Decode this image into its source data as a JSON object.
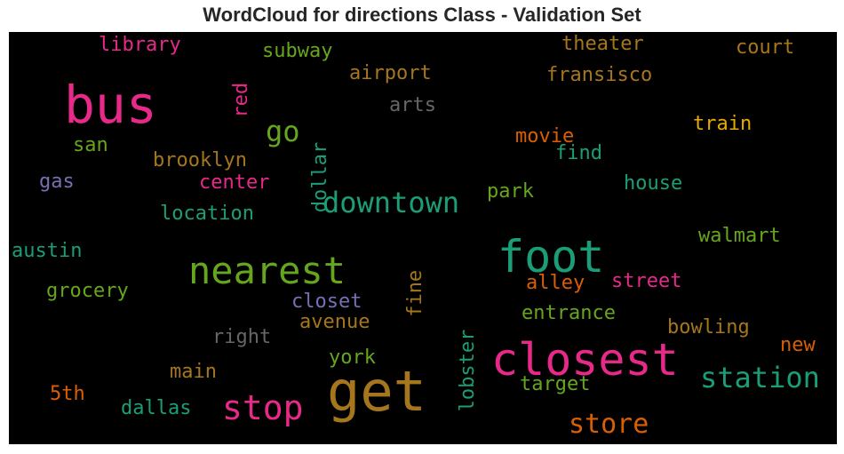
{
  "title": "WordCloud for directions Class - Validation Set",
  "chart_data": {
    "type": "wordcloud",
    "title": "WordCloud for directions Class - Validation Set",
    "background": "#000000",
    "words": [
      {
        "text": "get",
        "weight": 1.0,
        "color": "#a6761d",
        "rotate": 0
      },
      {
        "text": "closest",
        "weight": 0.85,
        "color": "#e7298a",
        "rotate": 0
      },
      {
        "text": "bus",
        "weight": 0.8,
        "color": "#e7298a",
        "rotate": 0
      },
      {
        "text": "foot",
        "weight": 0.75,
        "color": "#1b9e77",
        "rotate": 0
      },
      {
        "text": "nearest",
        "weight": 0.68,
        "color": "#66a61e",
        "rotate": 0
      },
      {
        "text": "stop",
        "weight": 0.6,
        "color": "#e7298a",
        "rotate": 0
      },
      {
        "text": "station",
        "weight": 0.5,
        "color": "#1b9e77",
        "rotate": 0
      },
      {
        "text": "downtown",
        "weight": 0.48,
        "color": "#1b9e77",
        "rotate": 0
      },
      {
        "text": "store",
        "weight": 0.46,
        "color": "#d95f02",
        "rotate": 0
      },
      {
        "text": "go",
        "weight": 0.45,
        "color": "#66a61e",
        "rotate": 0
      },
      {
        "text": "lobster",
        "weight": 0.36,
        "color": "#1b9e77",
        "rotate": -90
      },
      {
        "text": "dollar",
        "weight": 0.36,
        "color": "#1b9e77",
        "rotate": -90
      },
      {
        "text": "fine",
        "weight": 0.35,
        "color": "#a6761d",
        "rotate": -90
      },
      {
        "text": "red",
        "weight": 0.33,
        "color": "#e7298a",
        "rotate": -90
      },
      {
        "text": "library",
        "weight": 0.35,
        "color": "#e7298a",
        "rotate": 0
      },
      {
        "text": "subway",
        "weight": 0.35,
        "color": "#66a61e",
        "rotate": 0
      },
      {
        "text": "theater",
        "weight": 0.34,
        "color": "#a6761d",
        "rotate": 0
      },
      {
        "text": "court",
        "weight": 0.34,
        "color": "#a6761d",
        "rotate": 0
      },
      {
        "text": "airport",
        "weight": 0.35,
        "color": "#a6761d",
        "rotate": 0
      },
      {
        "text": "fransisco",
        "weight": 0.35,
        "color": "#a6761d",
        "rotate": 0
      },
      {
        "text": "arts",
        "weight": 0.34,
        "color": "#666666",
        "rotate": 0
      },
      {
        "text": "train",
        "weight": 0.35,
        "color": "#e6ab02",
        "rotate": 0
      },
      {
        "text": "san",
        "weight": 0.33,
        "color": "#66a61e",
        "rotate": 0
      },
      {
        "text": "movie",
        "weight": 0.34,
        "color": "#d95f02",
        "rotate": 0
      },
      {
        "text": "find",
        "weight": 0.33,
        "color": "#1b9e77",
        "rotate": 0
      },
      {
        "text": "brooklyn",
        "weight": 0.35,
        "color": "#a6761d",
        "rotate": 0
      },
      {
        "text": "gas",
        "weight": 0.33,
        "color": "#7570b3",
        "rotate": 0
      },
      {
        "text": "center",
        "weight": 0.34,
        "color": "#e7298a",
        "rotate": 0
      },
      {
        "text": "house",
        "weight": 0.33,
        "color": "#1b9e77",
        "rotate": 0
      },
      {
        "text": "park",
        "weight": 0.33,
        "color": "#66a61e",
        "rotate": 0
      },
      {
        "text": "location",
        "weight": 0.34,
        "color": "#1b9e77",
        "rotate": 0
      },
      {
        "text": "walmart",
        "weight": 0.34,
        "color": "#66a61e",
        "rotate": 0
      },
      {
        "text": "austin",
        "weight": 0.34,
        "color": "#1b9e77",
        "rotate": 0
      },
      {
        "text": "alley",
        "weight": 0.34,
        "color": "#d95f02",
        "rotate": 0
      },
      {
        "text": "street",
        "weight": 0.34,
        "color": "#e7298a",
        "rotate": 0
      },
      {
        "text": "grocery",
        "weight": 0.34,
        "color": "#66a61e",
        "rotate": 0
      },
      {
        "text": "closet",
        "weight": 0.33,
        "color": "#7570b3",
        "rotate": 0
      },
      {
        "text": "entrance",
        "weight": 0.34,
        "color": "#66a61e",
        "rotate": 0
      },
      {
        "text": "avenue",
        "weight": 0.33,
        "color": "#a6761d",
        "rotate": 0
      },
      {
        "text": "bowling",
        "weight": 0.34,
        "color": "#a6761d",
        "rotate": 0
      },
      {
        "text": "right",
        "weight": 0.33,
        "color": "#666666",
        "rotate": 0
      },
      {
        "text": "new",
        "weight": 0.33,
        "color": "#d95f02",
        "rotate": 0
      },
      {
        "text": "york",
        "weight": 0.33,
        "color": "#66a61e",
        "rotate": 0
      },
      {
        "text": "main",
        "weight": 0.33,
        "color": "#a6761d",
        "rotate": 0
      },
      {
        "text": "target",
        "weight": 0.33,
        "color": "#66a61e",
        "rotate": 0
      },
      {
        "text": "5th",
        "weight": 0.33,
        "color": "#d95f02",
        "rotate": 0
      },
      {
        "text": "dallas",
        "weight": 0.33,
        "color": "#1b9e77",
        "rotate": 0
      }
    ]
  }
}
